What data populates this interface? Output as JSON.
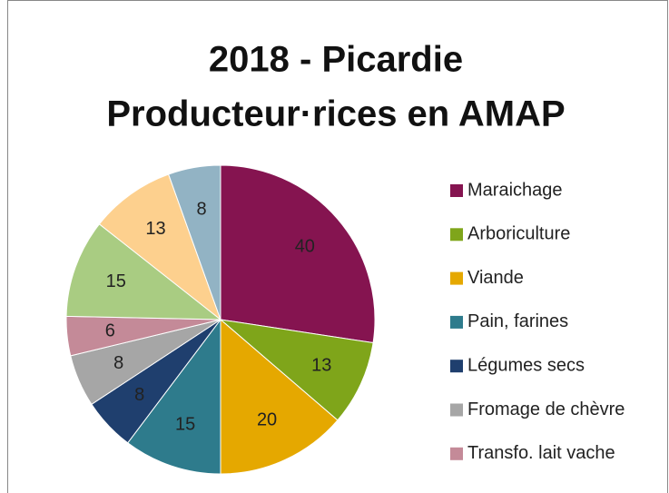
{
  "chart_data": {
    "type": "pie",
    "title": [
      "2018 - Picardie",
      "Producteur·rices en AMAP"
    ],
    "categories": [
      "Maraichage",
      "Arboriculture",
      "Viande",
      "Pain, farines",
      "Légumes secs",
      "Fromage de chèvre",
      "Transfo. lait vache",
      null,
      null,
      null
    ],
    "values": [
      40,
      13,
      20,
      15,
      8,
      8,
      6,
      15,
      13,
      8
    ],
    "colors": [
      "#851450",
      "#7fa51a",
      "#e5a800",
      "#2e7b8c",
      "#1f3f6e",
      "#a6a6a6",
      "#c48a98",
      "#a9cc82",
      "#fdd08e",
      "#92b3c4"
    ],
    "legend": "right"
  }
}
